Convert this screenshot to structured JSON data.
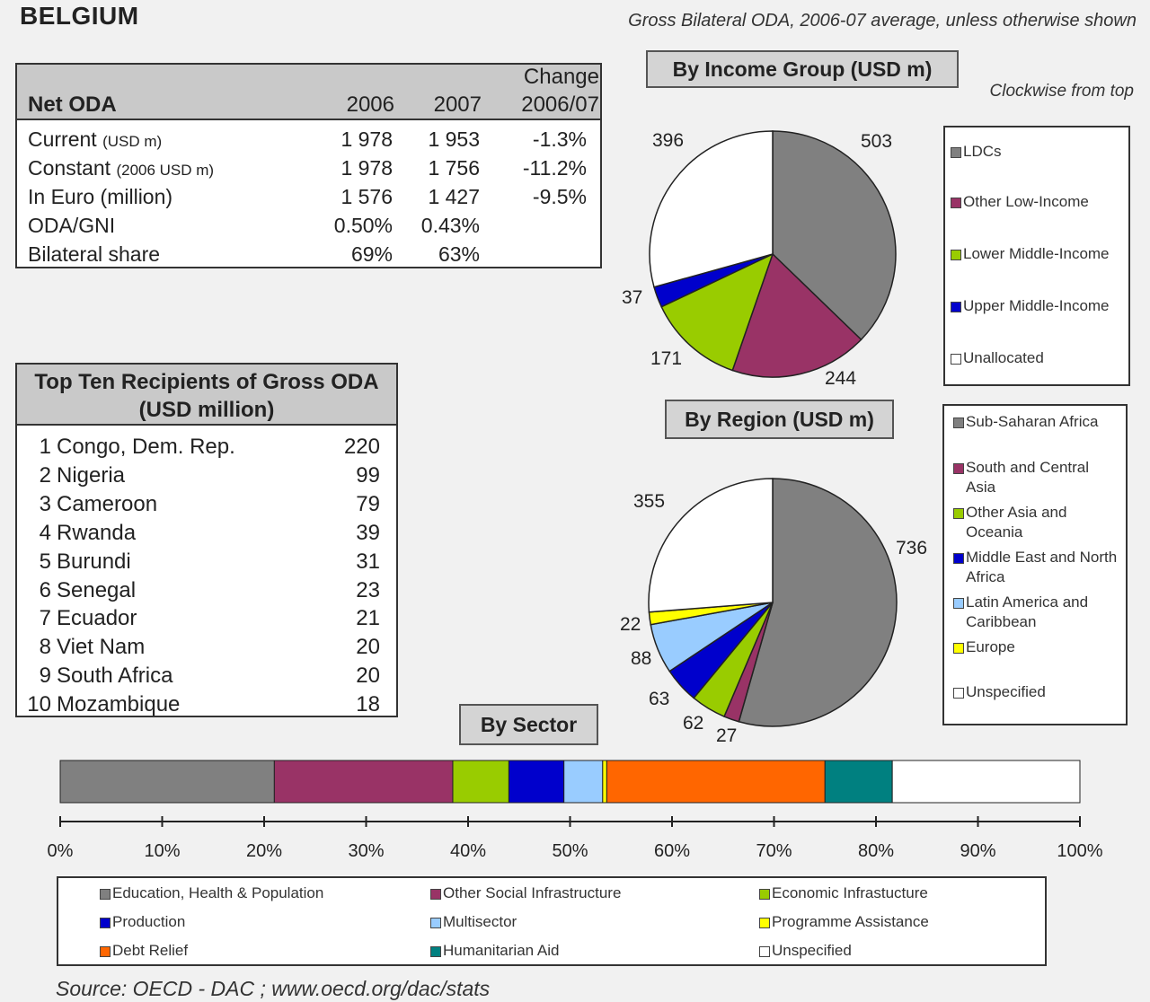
{
  "header": {
    "country": "BELGIUM",
    "subtitle": "Gross Bilateral ODA, 2006-07 average, unless otherwise shown"
  },
  "net_oda": {
    "title": "Net ODA",
    "col_2006": "2006",
    "col_2007": "2007",
    "col_change_1": "Change",
    "col_change_2": "2006/07",
    "rows": [
      {
        "label": "Current",
        "unit": "(USD m)",
        "v2006": "1 978",
        "v2007": "1 953",
        "change": "-1.3%"
      },
      {
        "label": "Constant",
        "unit": "(2006 USD m)",
        "v2006": "1 978",
        "v2007": "1 756",
        "change": "-11.2%"
      },
      {
        "label": "In Euro (million)",
        "unit": "",
        "v2006": "1 576",
        "v2007": "1 427",
        "change": "-9.5%"
      },
      {
        "label": "ODA/GNI",
        "unit": "",
        "v2006": "0.50%",
        "v2007": "0.43%",
        "change": ""
      },
      {
        "label": "Bilateral share",
        "unit": "",
        "v2006": "69%",
        "v2007": "63%",
        "change": ""
      }
    ]
  },
  "top_ten": {
    "title_1": "Top Ten Recipients of Gross ODA",
    "title_2": "(USD million)",
    "rows": [
      {
        "rank": "1",
        "name": "Congo, Dem. Rep.",
        "value": "220"
      },
      {
        "rank": "2",
        "name": "Nigeria",
        "value": "99"
      },
      {
        "rank": "3",
        "name": "Cameroon",
        "value": "79"
      },
      {
        "rank": "4",
        "name": "Rwanda",
        "value": "39"
      },
      {
        "rank": "5",
        "name": "Burundi",
        "value": "31"
      },
      {
        "rank": "6",
        "name": "Senegal",
        "value": "23"
      },
      {
        "rank": "7",
        "name": "Ecuador",
        "value": "21"
      },
      {
        "rank": "8",
        "name": "Viet Nam",
        "value": "20"
      },
      {
        "rank": "9",
        "name": "South Africa",
        "value": "20"
      },
      {
        "rank": "10",
        "name": "Mozambique",
        "value": "18"
      }
    ]
  },
  "notes": {
    "clockwise": "Clockwise from top",
    "source": "Source:  OECD - DAC ; www.oecd.org/dac/stats"
  },
  "chart_data": [
    {
      "type": "pie",
      "title": "By Income Group (USD m)",
      "labels": [
        "LDCs",
        "Other Low-Income",
        "Lower Middle-Income",
        "Upper Middle-Income",
        "Unallocated"
      ],
      "values": [
        503,
        244,
        171,
        37,
        396
      ],
      "colors": [
        "#808080",
        "#993366",
        "#99cc00",
        "#0000cc",
        "#ffffff"
      ],
      "start": "top",
      "direction": "clockwise",
      "legend_position": "right"
    },
    {
      "type": "pie",
      "title": "By Region (USD m)",
      "labels": [
        "Sub-Saharan Africa",
        "South and Central Asia",
        "Other Asia and Oceania",
        "Middle East and North Africa",
        "Latin America and Caribbean",
        "Europe",
        "Unspecified"
      ],
      "values": [
        736,
        27,
        62,
        63,
        88,
        22,
        355
      ],
      "colors": [
        "#808080",
        "#993366",
        "#99cc00",
        "#0000cc",
        "#99ccff",
        "#ffff00",
        "#ffffff"
      ],
      "start": "top",
      "direction": "clockwise",
      "legend_position": "right"
    },
    {
      "type": "bar",
      "orientation": "horizontal-stacked-100",
      "title": "By Sector",
      "categories": [
        "Education, Health & Population",
        "Other Social Infrastructure",
        "Economic Infrastucture",
        "Production",
        "Multisector",
        "Programme Assistance",
        "Debt Relief",
        "Humanitarian Aid",
        "Unspecified"
      ],
      "values": [
        21,
        17.5,
        5.5,
        5.4,
        3.8,
        0.4,
        21.4,
        6.6,
        18.4
      ],
      "colors": [
        "#808080",
        "#993366",
        "#99cc00",
        "#0000cc",
        "#99ccff",
        "#ffff00",
        "#ff6600",
        "#008080",
        "#ffffff"
      ],
      "x_ticks": [
        "0%",
        "10%",
        "20%",
        "30%",
        "40%",
        "50%",
        "60%",
        "70%",
        "80%",
        "90%",
        "100%"
      ],
      "xlim": [
        0,
        100
      ],
      "legend_position": "bottom"
    }
  ]
}
